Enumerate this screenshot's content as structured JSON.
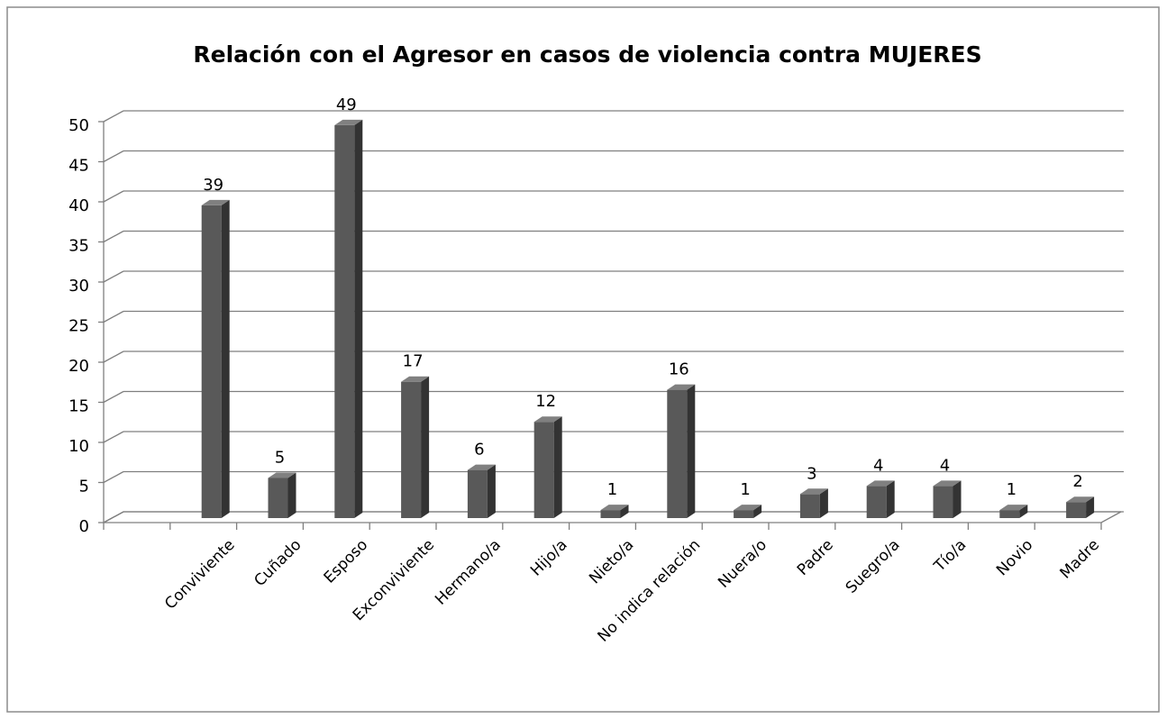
{
  "chart_data": {
    "type": "bar3d",
    "title": "Relación con el Agresor en casos de violencia contra MUJERES",
    "categories": [
      null,
      "Conviviente",
      "Cuñado",
      "Esposo",
      "Exconviviente",
      "Hermano/a",
      "Hijo/a",
      "Nieto/a",
      "No indica relación",
      "Nuera/o",
      "Padre",
      "Suegro/a",
      "Tío/a",
      "Novio",
      "Madre"
    ],
    "values": [
      null,
      39,
      5,
      49,
      17,
      6,
      12,
      1,
      16,
      1,
      3,
      4,
      4,
      1,
      2
    ],
    "color": "#595959",
    "ylim": [
      0,
      50
    ],
    "yticks": [
      0,
      5,
      10,
      15,
      20,
      25,
      30,
      35,
      40,
      45,
      50
    ],
    "grid": true
  }
}
